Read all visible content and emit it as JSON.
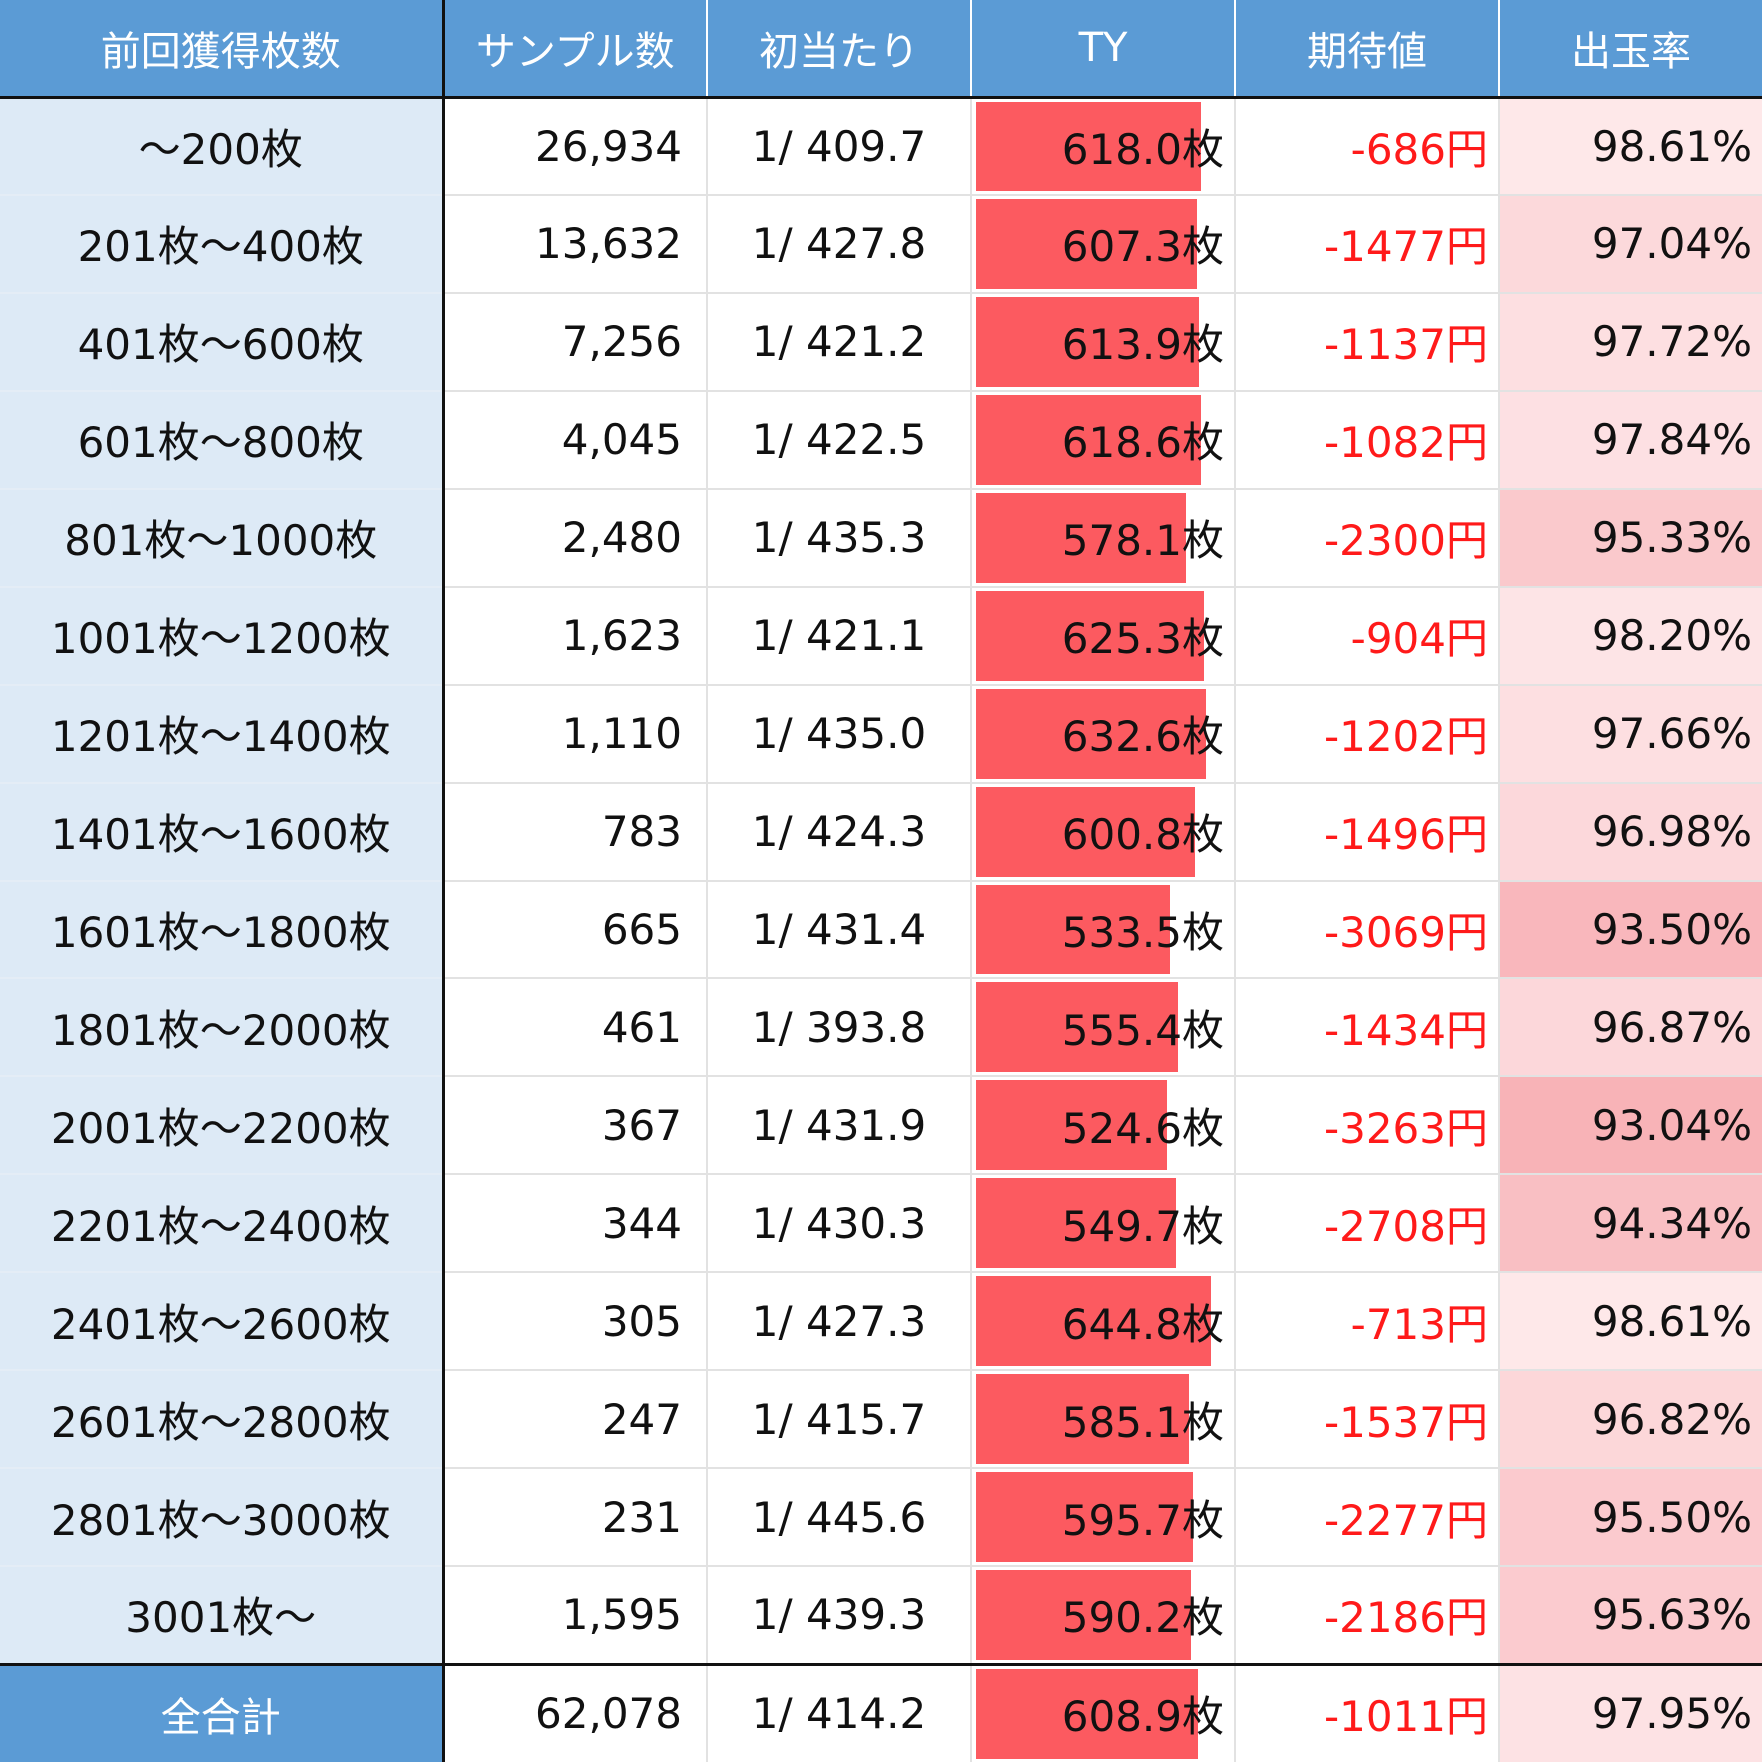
{
  "colors": {
    "header_bg": "#5b9bd5",
    "label_bg": "#ddeaf6",
    "bar": "#fc5a60",
    "negative_text": "#ff1a1a",
    "rate_heat": "#f7a9ae"
  },
  "ty_scale_max": 720,
  "rate_scale": {
    "low": 92.0,
    "high": 100.0
  },
  "headers": [
    "前回獲得枚数",
    "サンプル数",
    "初当たり",
    "TY",
    "期待値",
    "出玉率"
  ],
  "rows": [
    {
      "label": "～200枚",
      "samples": "26,934",
      "hit": "1/ 409.7",
      "ty": "618.0枚",
      "ty_value": 618.0,
      "ev": "-686円",
      "rate": "98.61%",
      "rate_value": 98.61
    },
    {
      "label": "201枚～400枚",
      "samples": "13,632",
      "hit": "1/ 427.8",
      "ty": "607.3枚",
      "ty_value": 607.3,
      "ev": "-1477円",
      "rate": "97.04%",
      "rate_value": 97.04
    },
    {
      "label": "401枚～600枚",
      "samples": "7,256",
      "hit": "1/ 421.2",
      "ty": "613.9枚",
      "ty_value": 613.9,
      "ev": "-1137円",
      "rate": "97.72%",
      "rate_value": 97.72
    },
    {
      "label": "601枚～800枚",
      "samples": "4,045",
      "hit": "1/ 422.5",
      "ty": "618.6枚",
      "ty_value": 618.6,
      "ev": "-1082円",
      "rate": "97.84%",
      "rate_value": 97.84
    },
    {
      "label": "801枚～1000枚",
      "samples": "2,480",
      "hit": "1/ 435.3",
      "ty": "578.1枚",
      "ty_value": 578.1,
      "ev": "-2300円",
      "rate": "95.33%",
      "rate_value": 95.33
    },
    {
      "label": "1001枚～1200枚",
      "samples": "1,623",
      "hit": "1/ 421.1",
      "ty": "625.3枚",
      "ty_value": 625.3,
      "ev": "-904円",
      "rate": "98.20%",
      "rate_value": 98.2
    },
    {
      "label": "1201枚～1400枚",
      "samples": "1,110",
      "hit": "1/ 435.0",
      "ty": "632.6枚",
      "ty_value": 632.6,
      "ev": "-1202円",
      "rate": "97.66%",
      "rate_value": 97.66
    },
    {
      "label": "1401枚～1600枚",
      "samples": "783",
      "hit": "1/ 424.3",
      "ty": "600.8枚",
      "ty_value": 600.8,
      "ev": "-1496円",
      "rate": "96.98%",
      "rate_value": 96.98
    },
    {
      "label": "1601枚～1800枚",
      "samples": "665",
      "hit": "1/ 431.4",
      "ty": "533.5枚",
      "ty_value": 533.5,
      "ev": "-3069円",
      "rate": "93.50%",
      "rate_value": 93.5
    },
    {
      "label": "1801枚～2000枚",
      "samples": "461",
      "hit": "1/ 393.8",
      "ty": "555.4枚",
      "ty_value": 555.4,
      "ev": "-1434円",
      "rate": "96.87%",
      "rate_value": 96.87
    },
    {
      "label": "2001枚～2200枚",
      "samples": "367",
      "hit": "1/ 431.9",
      "ty": "524.6枚",
      "ty_value": 524.6,
      "ev": "-3263円",
      "rate": "93.04%",
      "rate_value": 93.04
    },
    {
      "label": "2201枚～2400枚",
      "samples": "344",
      "hit": "1/ 430.3",
      "ty": "549.7枚",
      "ty_value": 549.7,
      "ev": "-2708円",
      "rate": "94.34%",
      "rate_value": 94.34
    },
    {
      "label": "2401枚～2600枚",
      "samples": "305",
      "hit": "1/ 427.3",
      "ty": "644.8枚",
      "ty_value": 644.8,
      "ev": "-713円",
      "rate": "98.61%",
      "rate_value": 98.61
    },
    {
      "label": "2601枚～2800枚",
      "samples": "247",
      "hit": "1/ 415.7",
      "ty": "585.1枚",
      "ty_value": 585.1,
      "ev": "-1537円",
      "rate": "96.82%",
      "rate_value": 96.82
    },
    {
      "label": "2801枚～3000枚",
      "samples": "231",
      "hit": "1/ 445.6",
      "ty": "595.7枚",
      "ty_value": 595.7,
      "ev": "-2277円",
      "rate": "95.50%",
      "rate_value": 95.5
    },
    {
      "label": "3001枚～",
      "samples": "1,595",
      "hit": "1/ 439.3",
      "ty": "590.2枚",
      "ty_value": 590.2,
      "ev": "-2186円",
      "rate": "95.63%",
      "rate_value": 95.63
    }
  ],
  "total": {
    "label": "全合計",
    "samples": "62,078",
    "hit": "1/ 414.2",
    "ty": "608.9枚",
    "ty_value": 608.9,
    "ev": "-1011円",
    "rate": "97.95%",
    "rate_value": 97.95
  }
}
